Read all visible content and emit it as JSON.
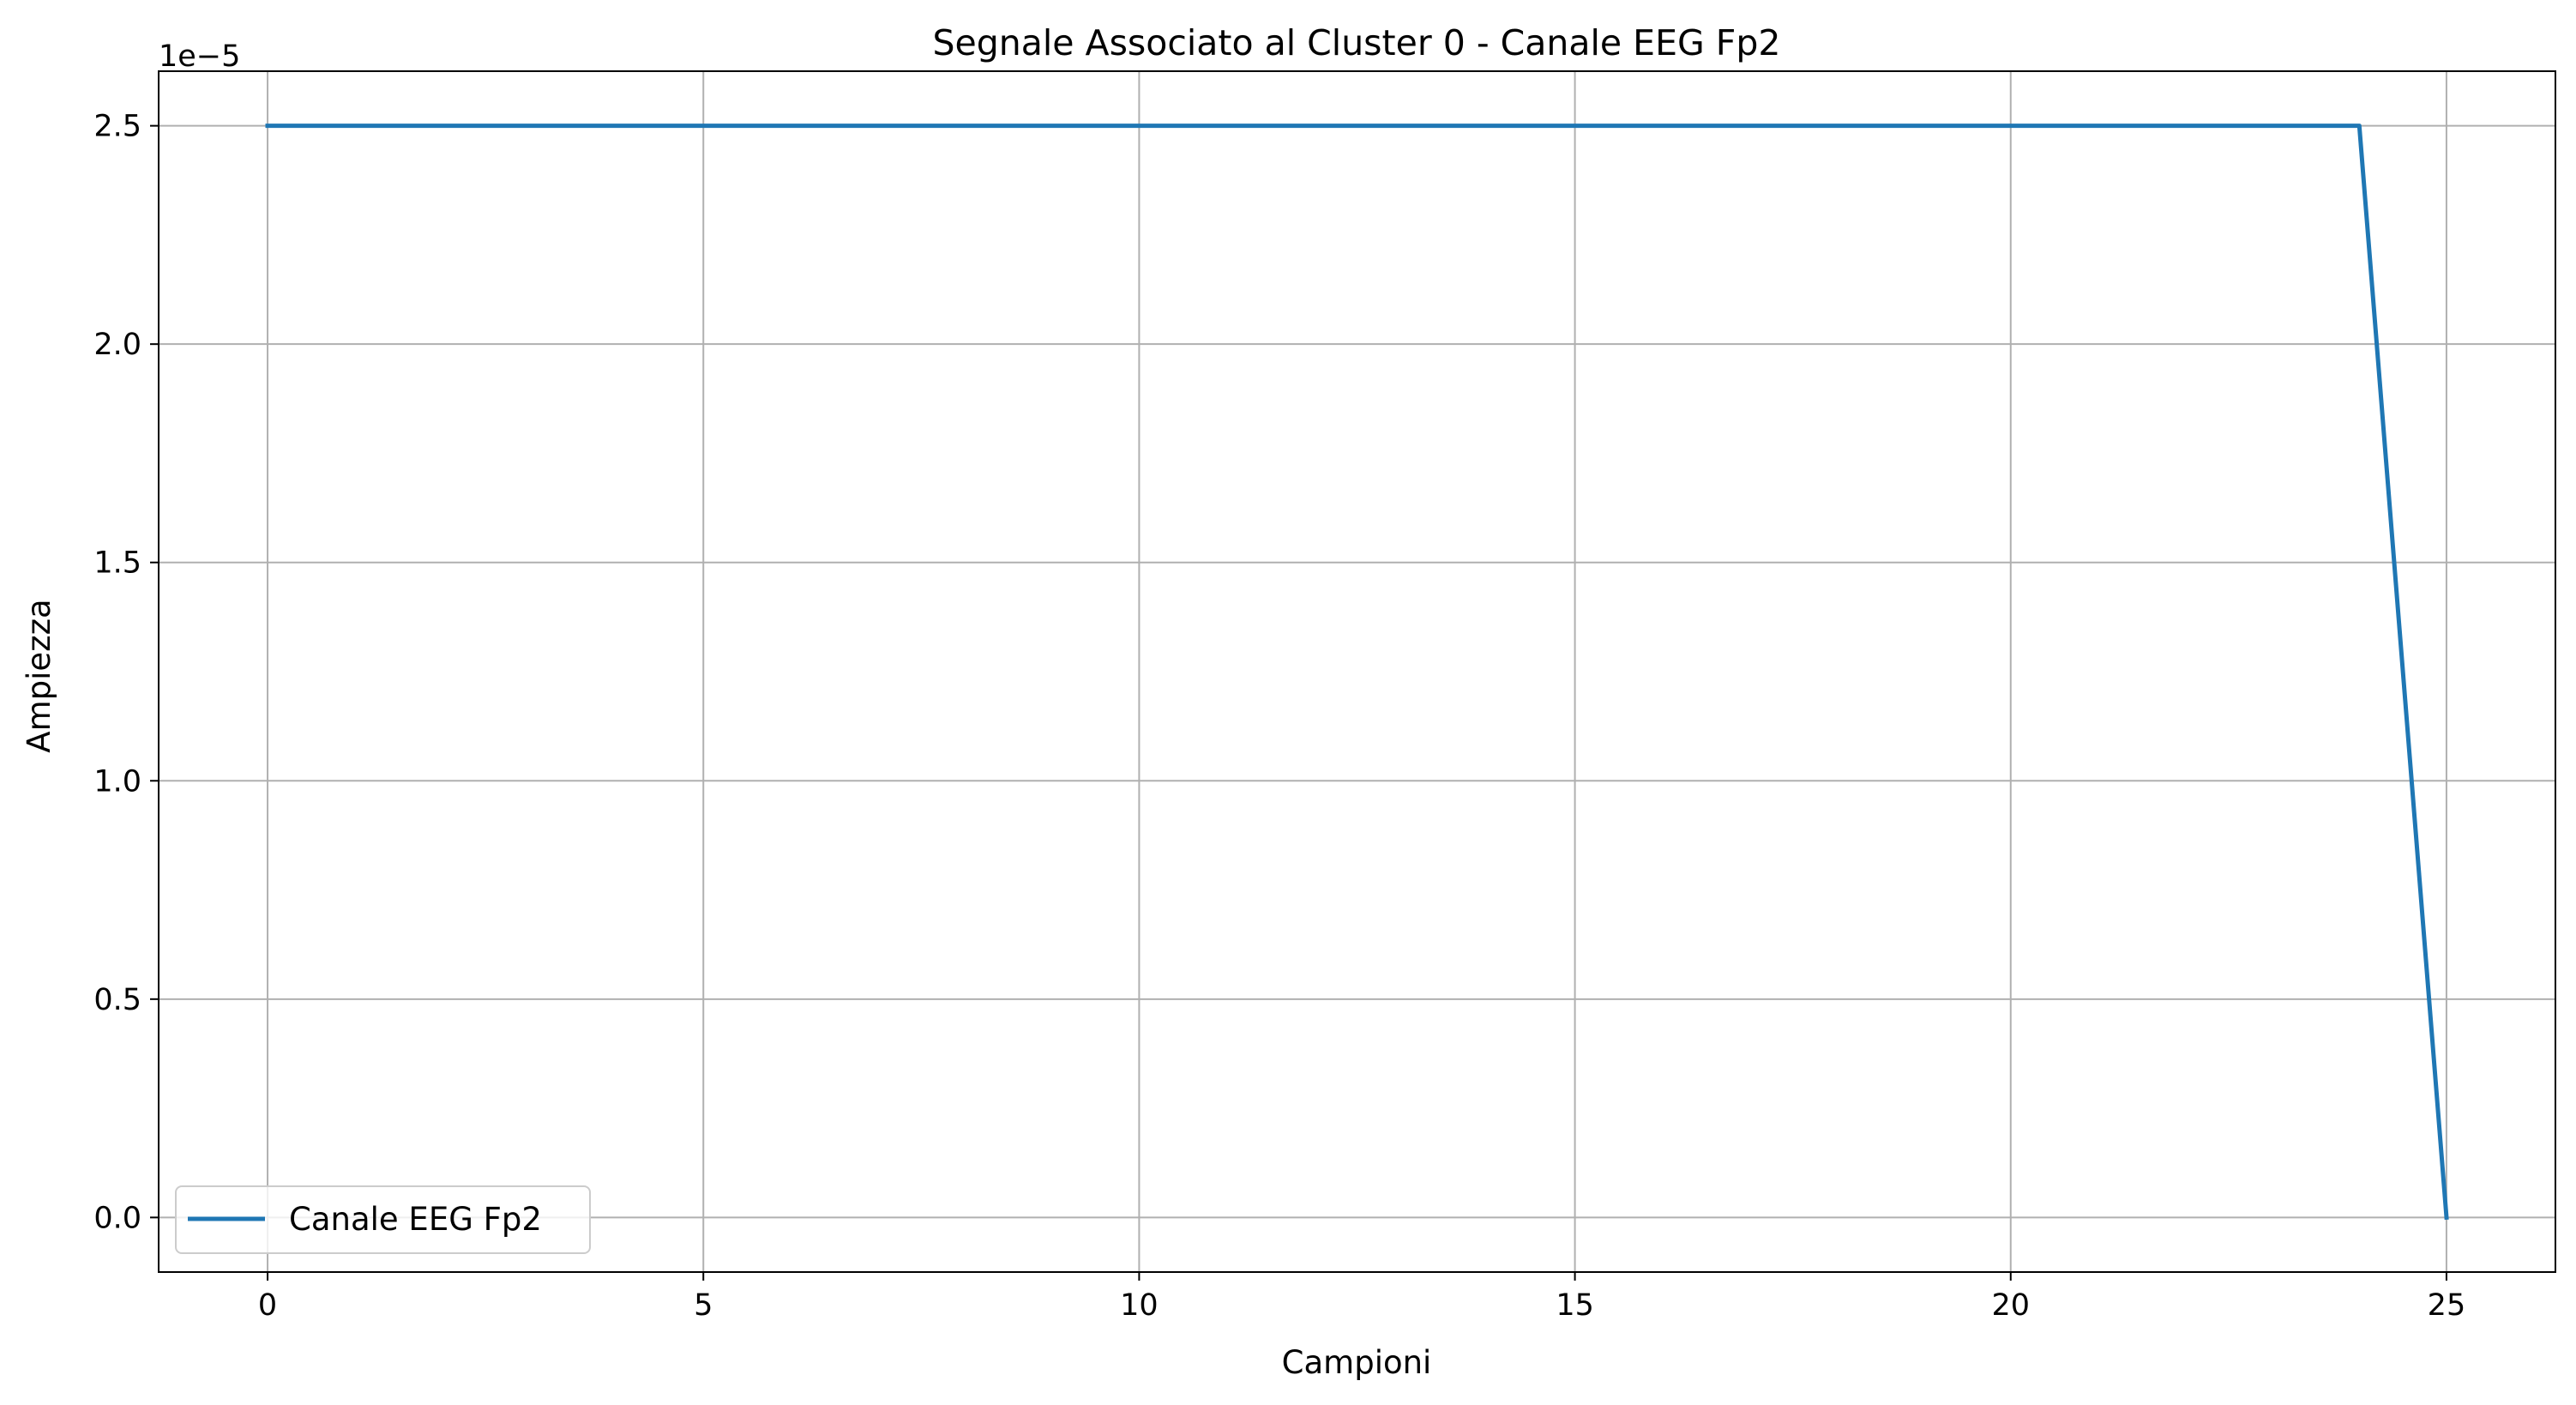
{
  "chart_data": {
    "type": "line",
    "title": "Segnale Associato al Cluster 0 - Canale EEG Fp2",
    "xlabel": "Campioni",
    "ylabel": "Ampiezza",
    "y_offset_text": "1e−5",
    "xlim": [
      -1.25,
      26.25
    ],
    "ylim": [
      -1.25,
      26.25
    ],
    "x_ticks": [
      0,
      5,
      10,
      15,
      20,
      25
    ],
    "x_tick_labels": [
      "0",
      "5",
      "10",
      "15",
      "20",
      "25"
    ],
    "y_ticks": [
      0,
      5,
      10,
      15,
      20,
      25
    ],
    "y_tick_labels": [
      "0.0",
      "0.5",
      "1.0",
      "1.5",
      "2.0",
      "2.5"
    ],
    "grid": true,
    "legend_position": "lower-left",
    "series": [
      {
        "name": "Canale EEG Fp2",
        "color": "#1f77b4",
        "x": [
          0,
          1,
          2,
          3,
          4,
          5,
          6,
          7,
          8,
          9,
          10,
          11,
          12,
          13,
          14,
          15,
          16,
          17,
          18,
          19,
          20,
          21,
          22,
          23,
          24,
          25
        ],
        "y": [
          25,
          25,
          25,
          25,
          25,
          25,
          25,
          25,
          25,
          25,
          25,
          25,
          25,
          25,
          25,
          25,
          25,
          25,
          25,
          25,
          25,
          25,
          25,
          25,
          25,
          0
        ]
      }
    ]
  }
}
